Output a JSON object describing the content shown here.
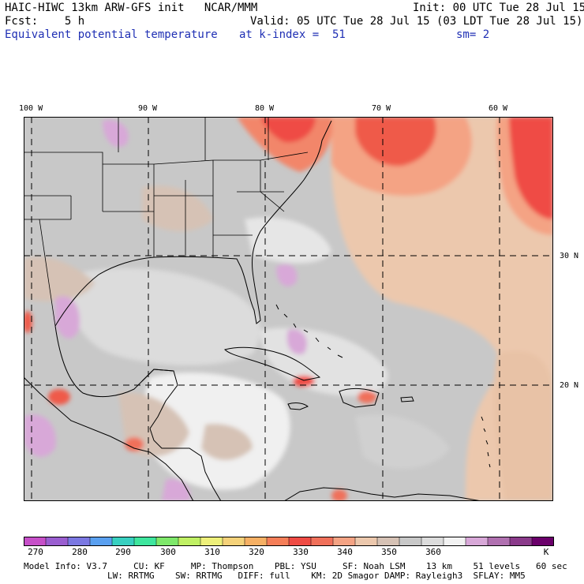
{
  "header": {
    "title": "HAIC-HIWC 13km ARW-GFS init   NCAR/MMM",
    "fcst": "Fcst:    5 h",
    "field": "Equivalent potential temperature",
    "init": "Init: 00 UTC Tue 28 Jul 15",
    "valid": "Valid: 05 UTC Tue 28 Jul 15 (03 LDT Tue 28 Jul 15)",
    "level": "at k-index =  51",
    "smooth": "sm= 2"
  },
  "map": {
    "longitudes": [
      "100 W",
      "90 W",
      "80 W",
      "70 W",
      "60 W"
    ],
    "latitudes": [
      "30 N",
      "20 N"
    ]
  },
  "colorbar": {
    "ticks": [
      "270",
      "280",
      "290",
      "300",
      "310",
      "320",
      "330",
      "340",
      "350",
      "360"
    ],
    "unit": "K",
    "colors": [
      "#c64fc8",
      "#9a5ed0",
      "#7b78e2",
      "#5aa0f0",
      "#38d0c0",
      "#3ee69e",
      "#7ee86a",
      "#c0f064",
      "#eef07a",
      "#f5d27a",
      "#f6b064",
      "#f57e58",
      "#ef4b44",
      "#f0705a",
      "#f4a384",
      "#ecc8ad",
      "#d6c2b5",
      "#c8c8c8",
      "#dcdcdc",
      "#f2f2f2",
      "#d8a8d8",
      "#b070b0",
      "#8a3a8a",
      "#6a006a"
    ]
  },
  "model_info": {
    "line1": "Model Info: V3.7     CU: KF     MP: Thompson    PBL: YSU     SF: Noah LSM    13 km    51 levels   60 sec",
    "line2": "                LW: RRTMG    SW: RRTMG   DIFF: full    KM: 2D Smagor DAMP: Rayleigh3  SFLAY: MM5"
  }
}
